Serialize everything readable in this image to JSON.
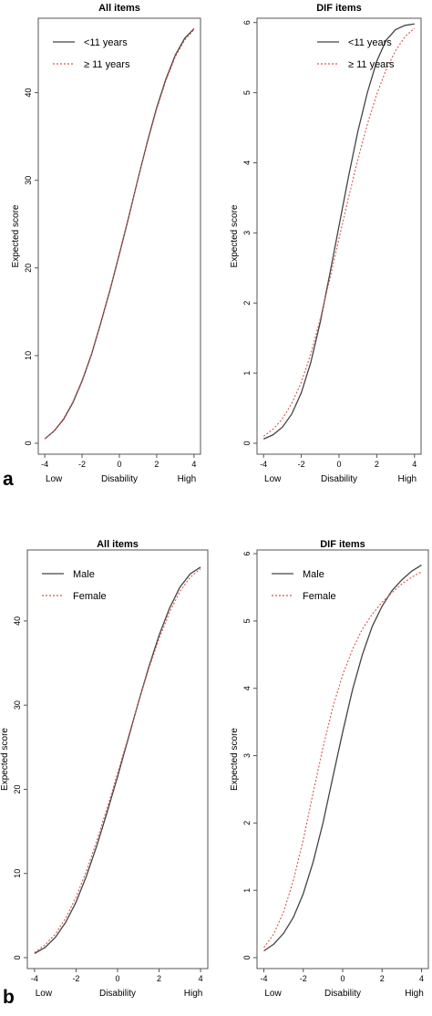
{
  "panel_labels": [
    "a",
    "b"
  ],
  "chart_data": [
    {
      "type": "line",
      "title": "All items",
      "xlabel": "Disability",
      "x_end_labels": [
        "Low",
        "High"
      ],
      "ylabel": "Expected score",
      "xlim": [
        -4,
        4
      ],
      "ylim": [
        0,
        48
      ],
      "xticks": [
        -4,
        -2,
        0,
        2,
        4
      ],
      "yticks": [
        0,
        10,
        20,
        30,
        40
      ],
      "legend_position": "top-left",
      "series": [
        {
          "name": "<11 years",
          "style": "solid",
          "color": "#444444",
          "x": [
            -4,
            -3.5,
            -3,
            -2.5,
            -2,
            -1.5,
            -1,
            -0.5,
            0,
            0.5,
            1,
            1.5,
            2,
            2.5,
            3,
            3.5,
            4
          ],
          "y": [
            0.5,
            1.4,
            2.7,
            4.6,
            7.1,
            10.1,
            13.7,
            17.5,
            21.6,
            25.8,
            30.2,
            34.4,
            38.3,
            41.6,
            44.3,
            46.2,
            47.3
          ]
        },
        {
          "name": "≥ 11 years",
          "style": "dotted",
          "color": "#d9534f",
          "x": [
            -4,
            -3.5,
            -3,
            -2.5,
            -2,
            -1.5,
            -1,
            -0.5,
            0,
            0.5,
            1,
            1.5,
            2,
            2.5,
            3,
            3.5,
            4
          ],
          "y": [
            0.5,
            1.4,
            2.8,
            4.7,
            7.2,
            10.2,
            13.8,
            17.6,
            21.7,
            25.9,
            30.2,
            34.3,
            38.1,
            41.4,
            44.1,
            46.0,
            47.2
          ]
        }
      ]
    },
    {
      "type": "line",
      "title": "DIF items",
      "xlabel": "Disability",
      "x_end_labels": [
        "Low",
        "High"
      ],
      "ylabel": "Expected score",
      "xlim": [
        -4,
        4
      ],
      "ylim": [
        0,
        6
      ],
      "xticks": [
        -4,
        -2,
        0,
        2,
        4
      ],
      "yticks": [
        0,
        1,
        2,
        3,
        4,
        5,
        6
      ],
      "legend_position": "top-right",
      "series": [
        {
          "name": "<11 years",
          "style": "solid",
          "color": "#444444",
          "x": [
            -4,
            -3.5,
            -3,
            -2.5,
            -2,
            -1.5,
            -1,
            -0.5,
            0,
            0.5,
            1,
            1.5,
            2,
            2.5,
            3,
            3.5,
            4
          ],
          "y": [
            0.06,
            0.12,
            0.23,
            0.42,
            0.72,
            1.15,
            1.72,
            2.4,
            3.1,
            3.8,
            4.45,
            5.0,
            5.45,
            5.75,
            5.9,
            5.96,
            5.98
          ]
        },
        {
          "name": "≥ 11 years",
          "style": "dotted",
          "color": "#d9534f",
          "x": [
            -4,
            -3.5,
            -3,
            -2.5,
            -2,
            -1.5,
            -1,
            -0.5,
            0,
            0.5,
            1,
            1.5,
            2,
            2.5,
            3,
            3.5,
            4
          ],
          "y": [
            0.1,
            0.2,
            0.35,
            0.57,
            0.87,
            1.27,
            1.77,
            2.33,
            2.92,
            3.5,
            4.05,
            4.55,
            4.98,
            5.33,
            5.6,
            5.8,
            5.92
          ]
        }
      ]
    },
    {
      "type": "line",
      "title": "All items",
      "xlabel": "Disability",
      "x_end_labels": [
        "Low",
        "High"
      ],
      "ylabel": "Expected score",
      "xlim": [
        -4,
        4
      ],
      "ylim": [
        0,
        48
      ],
      "xticks": [
        -4,
        -2,
        0,
        2,
        4
      ],
      "yticks": [
        0,
        10,
        20,
        30,
        40
      ],
      "legend_position": "top-left",
      "series": [
        {
          "name": "Male",
          "style": "solid",
          "color": "#444444",
          "x": [
            -4,
            -3.5,
            -3,
            -2.5,
            -2,
            -1.5,
            -1,
            -0.5,
            0,
            0.5,
            1,
            1.5,
            2,
            2.5,
            3,
            3.5,
            4
          ],
          "y": [
            0.5,
            1.2,
            2.4,
            4.2,
            6.6,
            9.7,
            13.3,
            17.3,
            21.5,
            25.9,
            30.3,
            34.5,
            38.3,
            41.5,
            44.0,
            45.6,
            46.4
          ]
        },
        {
          "name": "Female",
          "style": "dotted",
          "color": "#d9534f",
          "x": [
            -4,
            -3.5,
            -3,
            -2.5,
            -2,
            -1.5,
            -1,
            -0.5,
            0,
            0.5,
            1,
            1.5,
            2,
            2.5,
            3,
            3.5,
            4
          ],
          "y": [
            0.6,
            1.5,
            2.8,
            4.7,
            7.2,
            10.3,
            13.9,
            17.8,
            21.9,
            26.1,
            30.3,
            34.3,
            37.9,
            41.0,
            43.5,
            45.2,
            46.2
          ]
        }
      ]
    },
    {
      "type": "line",
      "title": "DIF items",
      "xlabel": "Disability",
      "x_end_labels": [
        "Low",
        "High"
      ],
      "ylabel": "Expected score",
      "xlim": [
        -4,
        4
      ],
      "ylim": [
        0,
        6
      ],
      "xticks": [
        -4,
        -2,
        0,
        2,
        4
      ],
      "yticks": [
        0,
        1,
        2,
        3,
        4,
        5,
        6
      ],
      "legend_position": "top-left",
      "series": [
        {
          "name": "Male",
          "style": "solid",
          "color": "#444444",
          "x": [
            -4,
            -3.5,
            -3,
            -2.5,
            -2,
            -1.5,
            -1,
            -0.5,
            0,
            0.5,
            1,
            1.5,
            2,
            2.5,
            3,
            3.5,
            4
          ],
          "y": [
            0.1,
            0.2,
            0.36,
            0.6,
            0.95,
            1.42,
            2.0,
            2.68,
            3.35,
            3.98,
            4.5,
            4.92,
            5.22,
            5.45,
            5.61,
            5.74,
            5.83
          ]
        },
        {
          "name": "Female",
          "style": "dotted",
          "color": "#d9534f",
          "x": [
            -4,
            -3.5,
            -3,
            -2.5,
            -2,
            -1.5,
            -1,
            -0.5,
            0,
            0.5,
            1,
            1.5,
            2,
            2.5,
            3,
            3.5,
            4
          ],
          "y": [
            0.15,
            0.35,
            0.68,
            1.15,
            1.75,
            2.45,
            3.12,
            3.72,
            4.2,
            4.58,
            4.88,
            5.1,
            5.28,
            5.42,
            5.55,
            5.65,
            5.73
          ]
        }
      ]
    }
  ]
}
